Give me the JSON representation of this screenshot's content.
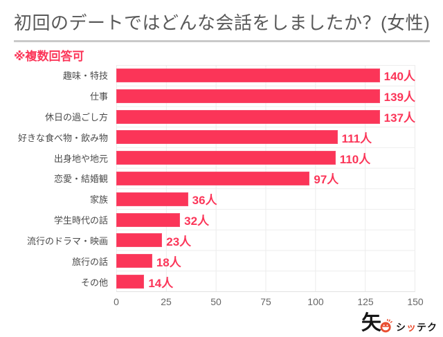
{
  "chart": {
    "title": "初回のデートではどんな会話をしましたか？(女性)",
    "note": "※複数回答可"
  },
  "chart_data": {
    "type": "bar",
    "orientation": "horizontal",
    "title": "初回のデートではどんな会話をしましたか？(女性)",
    "note": "※複数回答可",
    "categories": [
      "趣味・特技",
      "仕事",
      "休日の過ごし方",
      "好きな食べ物・飲み物",
      "出身地や地元",
      "恋愛・結婚観",
      "家族",
      "学生時代の話",
      "流行のドラマ・映画",
      "旅行の話",
      "その他"
    ],
    "values": [
      140,
      139,
      137,
      111,
      110,
      97,
      36,
      32,
      23,
      18,
      14
    ],
    "value_labels": [
      "140人",
      "139人",
      "137人",
      "111人",
      "110人",
      "97人",
      "36人",
      "32人",
      "23人",
      "18人",
      "14人"
    ],
    "unit": "人",
    "xlim": [
      0,
      150
    ],
    "x_ticks": [
      0,
      25,
      50,
      75,
      100,
      125,
      150
    ],
    "grid": true,
    "legend": false,
    "bar_color": "#FB3558"
  },
  "colors": {
    "accent_red": "#FB3558",
    "title_gray": "#595959",
    "label_gray": "#4A4A4A",
    "tick_gray": "#666666",
    "gridline": "#ECECEC",
    "divider": "#C9C9C9",
    "logo_red": "#E94E30"
  },
  "logo": {
    "ya": "矢",
    "smiley": "smiley-face-icon",
    "text_parts": [
      "シ",
      "ッ",
      "テク"
    ]
  }
}
